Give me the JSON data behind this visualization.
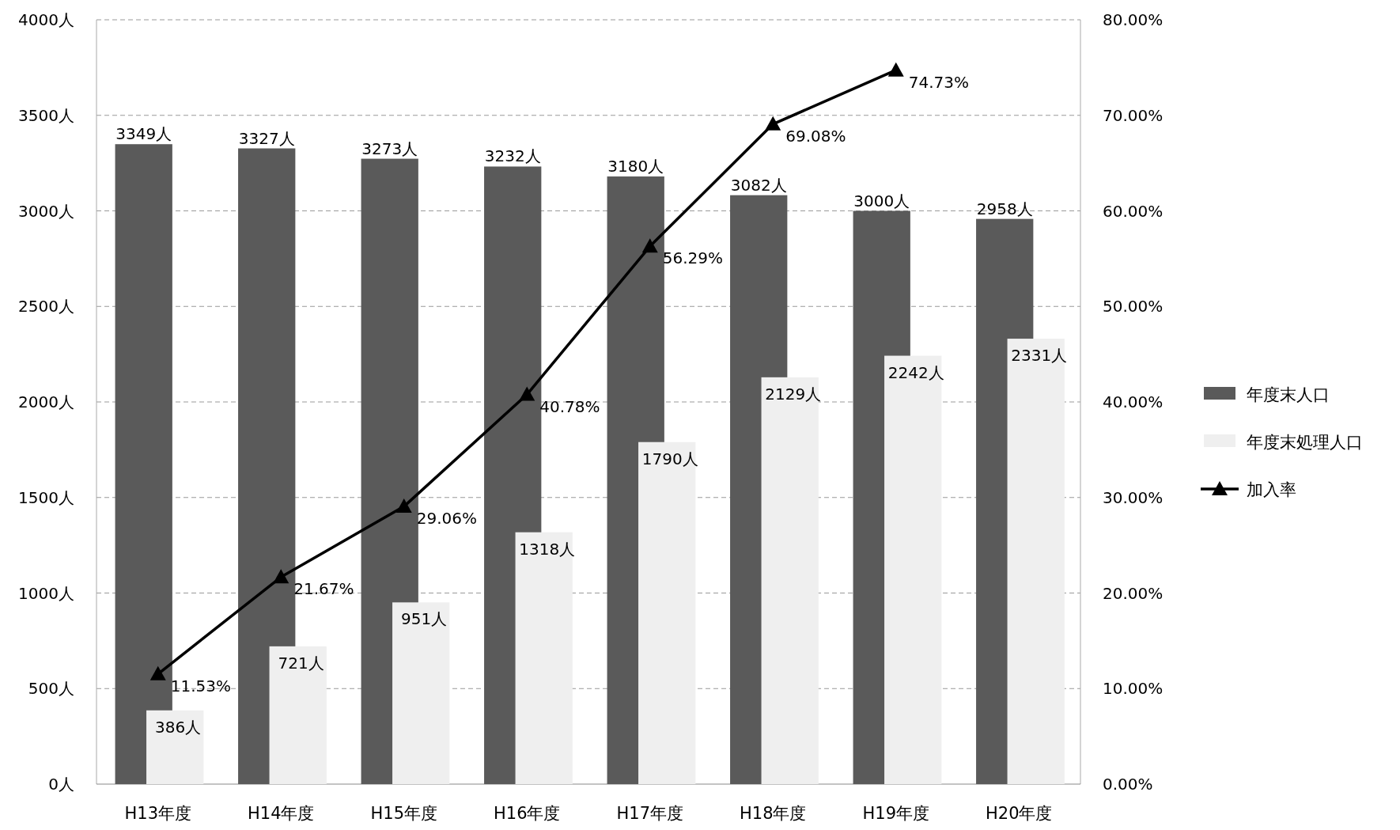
{
  "chart_data": {
    "type": "bar",
    "categories": [
      "H13年度",
      "H14年度",
      "H15年度",
      "H16年度",
      "H17年度",
      "H18年度",
      "H19年度",
      "H20年度"
    ],
    "series": [
      {
        "name": "年度末人口",
        "color": "#5a5a5a",
        "values": [
          3349,
          3327,
          3273,
          3232,
          3180,
          3082,
          3000,
          2958
        ],
        "value_labels": [
          "3349人",
          "3327人",
          "3273人",
          "3232人",
          "3180人",
          "3082人",
          "3000人",
          "2958人"
        ]
      },
      {
        "name": "年度末処理人口",
        "color": "#efefef",
        "values": [
          386,
          721,
          951,
          1318,
          1790,
          2129,
          2242,
          2331
        ],
        "value_labels": [
          "386人",
          "721人",
          "951人",
          "1318人",
          "1790人",
          "2129人",
          "2242人",
          "2331人"
        ]
      },
      {
        "name": "加入率",
        "type": "line",
        "axis": "y2",
        "color": "#000000",
        "marker": "triangle",
        "values": [
          11.53,
          21.67,
          29.06,
          40.78,
          56.29,
          69.08,
          74.73,
          null
        ],
        "value_labels": [
          "11.53%",
          "21.67%",
          "29.06%",
          "40.78%",
          "56.29%",
          "69.08%",
          "74.73%",
          null
        ]
      }
    ],
    "ylim": [
      0,
      4000
    ],
    "yticks": [
      {
        "value": 0,
        "label": "0人"
      },
      {
        "value": 500,
        "label": "500人"
      },
      {
        "value": 1000,
        "label": "1000人"
      },
      {
        "value": 1500,
        "label": "1500人"
      },
      {
        "value": 2000,
        "label": "2000人"
      },
      {
        "value": 2500,
        "label": "2500人"
      },
      {
        "value": 3000,
        "label": "3000人"
      },
      {
        "value": 3500,
        "label": "3500人"
      },
      {
        "value": 4000,
        "label": "4000人"
      }
    ],
    "y2lim": [
      0,
      80
    ],
    "y2ticks": [
      {
        "value": 0,
        "label": "0.00%"
      },
      {
        "value": 10,
        "label": "10.00%"
      },
      {
        "value": 20,
        "label": "20.00%"
      },
      {
        "value": 30,
        "label": "30.00%"
      },
      {
        "value": 40,
        "label": "40.00%"
      },
      {
        "value": 50,
        "label": "50.00%"
      },
      {
        "value": 60,
        "label": "60.00%"
      },
      {
        "value": 70,
        "label": "70.00%"
      },
      {
        "value": 80,
        "label": "80.00%"
      }
    ],
    "grid": "y",
    "legend": "right"
  }
}
